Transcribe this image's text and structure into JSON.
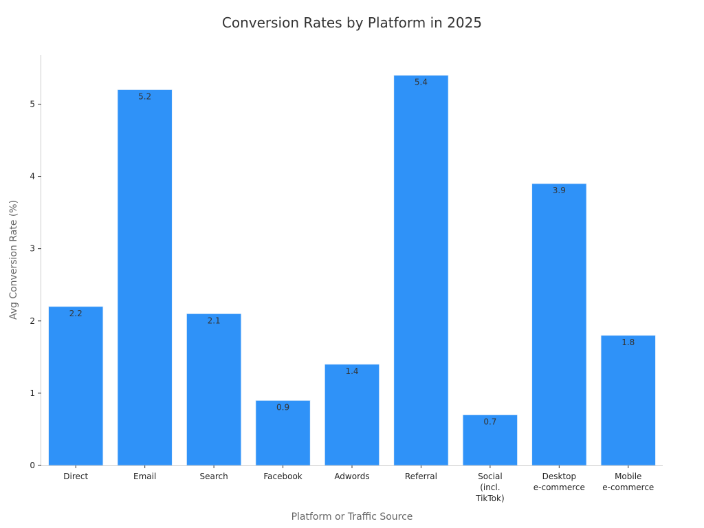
{
  "chart_data": {
    "type": "bar",
    "title": "Conversion Rates by Platform in 2025",
    "xlabel": "Platform or Traffic Source",
    "ylabel": "Avg Conversion Rate (%)",
    "categories": [
      [
        "Direct"
      ],
      [
        "Email"
      ],
      [
        "Search"
      ],
      [
        "Facebook"
      ],
      [
        "Adwords"
      ],
      [
        "Referral"
      ],
      [
        "Social",
        "(incl.",
        "TikTok)"
      ],
      [
        "Desktop",
        "e-commerce"
      ],
      [
        "Mobile",
        "e-commerce"
      ]
    ],
    "values": [
      2.2,
      5.2,
      2.1,
      0.9,
      1.4,
      5.4,
      0.7,
      3.9,
      1.8
    ],
    "value_labels": [
      "2.2",
      "5.2",
      "2.1",
      "0.9",
      "1.4",
      "5.4",
      "0.7",
      "3.9",
      "1.8"
    ],
    "yticks": [
      0,
      1,
      2,
      3,
      4,
      5
    ],
    "ylim": [
      0,
      5.68
    ],
    "grid": false,
    "bar_color": "#2f92f8"
  }
}
